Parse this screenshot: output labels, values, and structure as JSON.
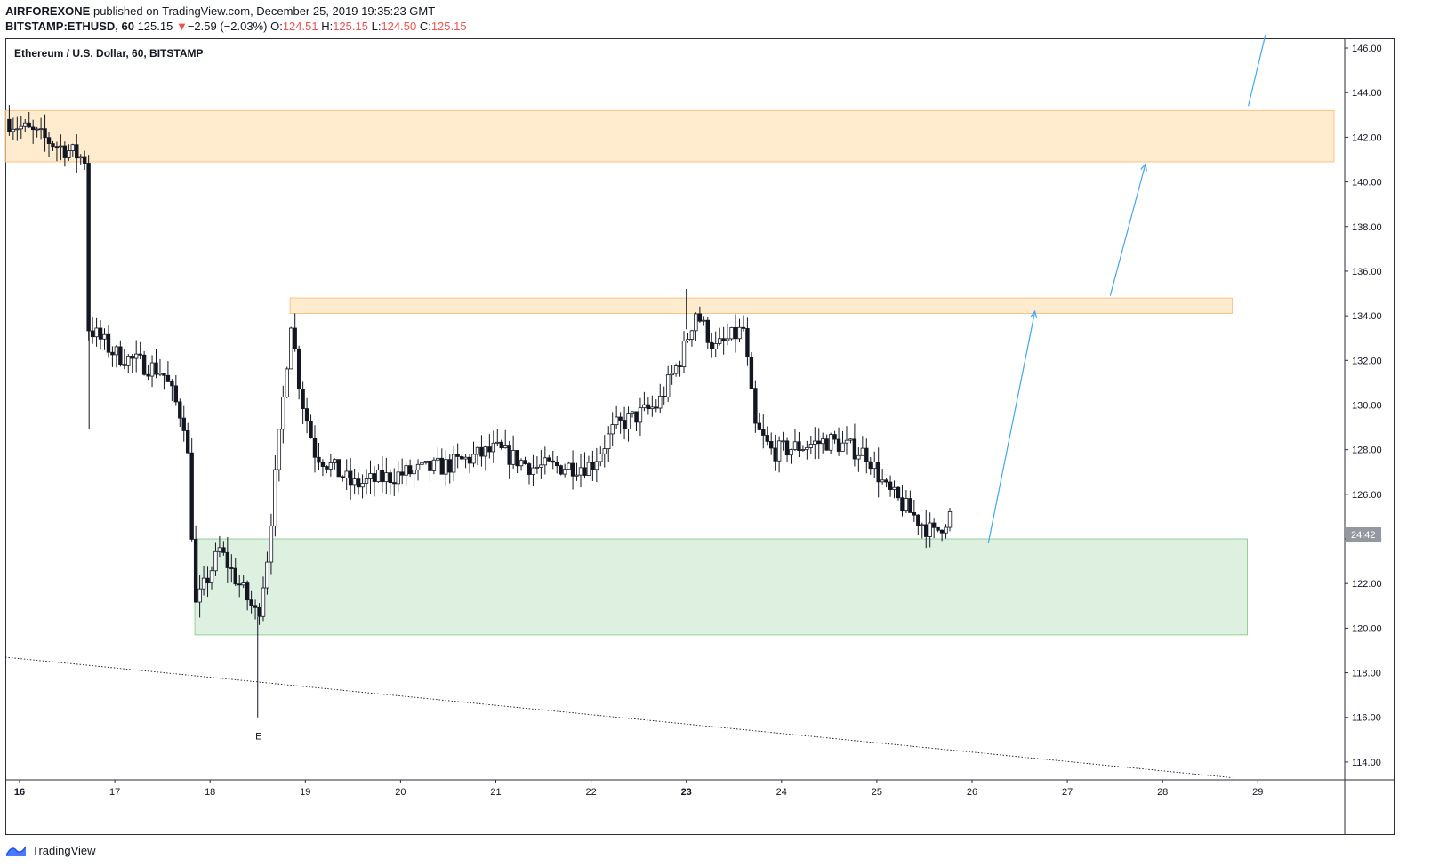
{
  "header": {
    "author": "AIRFOREXONE",
    "published_text": "published on TradingView.com, December 25, 2019 19:35:23 GMT",
    "symbol_line": {
      "symbol": "BITSTAMP:ETHUSD, 60",
      "price": "125.15",
      "change_arrow": "▼",
      "change": "−2.59 (−2.03%)",
      "open_label": "O:",
      "open": "124.51",
      "high_label": "H:",
      "high": "125.15",
      "low_label": "L:",
      "low": "124.50",
      "close_label": "C:",
      "close": "125.15"
    }
  },
  "chart_title": "Ethereum / U.S. Dollar, 60, BITSTAMP",
  "footer": {
    "brand": "TradingView"
  },
  "colors": {
    "supply_zone": "#ffe0b2",
    "demand_zone": "#c8e6c9",
    "projection": "#42a5f5",
    "candle": "#131722",
    "negative": "#ef5350",
    "countdown_badge": "#9598a1"
  },
  "chart_data": {
    "type": "candlestick",
    "title": "Ethereum / U.S. Dollar, 60, BITSTAMP",
    "ylim": [
      113.2,
      146.4
    ],
    "y_ticks": [
      "146.00",
      "144.00",
      "142.00",
      "140.00",
      "138.00",
      "136.00",
      "134.00",
      "132.00",
      "130.00",
      "128.00",
      "126.00",
      "124.00",
      "122.00",
      "120.00",
      "118.00",
      "116.00",
      "114.00"
    ],
    "x_tick_labels": [
      "16",
      "17",
      "18",
      "19",
      "20",
      "21",
      "22",
      "23",
      "24",
      "25",
      "26",
      "27",
      "28",
      "29"
    ],
    "bold_x_ticks": [
      "16",
      "23"
    ],
    "price_badge": "24:42",
    "price_badge_level": 124.2,
    "zones": [
      {
        "name": "upper-supply-zone",
        "type": "supply",
        "from_day": 15.85,
        "to_day": 29.8,
        "low": 140.9,
        "high": 143.2
      },
      {
        "name": "mid-supply-zone",
        "type": "supply",
        "from_day": 18.84,
        "to_day": 28.73,
        "low": 134.1,
        "high": 134.8
      },
      {
        "name": "demand-zone",
        "type": "demand",
        "from_day": 17.84,
        "to_day": 28.89,
        "low": 119.7,
        "high": 124.0
      }
    ],
    "projection_path": [
      [
        26.17,
        123.8
      ],
      [
        26.66,
        134.2
      ],
      [
        27.45,
        134.9
      ],
      [
        27.82,
        140.8
      ],
      [
        28.9,
        143.4
      ],
      [
        29.08,
        146.6
      ]
    ],
    "trendline": {
      "start": [
        15.85,
        118.7
      ],
      "end": [
        28.73,
        113.3
      ]
    },
    "label_e": {
      "text": "E",
      "day": 18.51,
      "price": 115.5
    },
    "candles_anchor_days": [
      15.85,
      16.7,
      16.72,
      17.0,
      17.5,
      17.75,
      17.85,
      18.1,
      18.5,
      18.6,
      18.85,
      18.95,
      19.1,
      19.5,
      20.0,
      20.5,
      21.0,
      21.4,
      22.0,
      22.25,
      22.7,
      22.95,
      23.1,
      23.3,
      23.6,
      23.72,
      23.9,
      24.5,
      24.9,
      25.1,
      25.4,
      25.6,
      25.78
    ],
    "candles_anchor_prices": [
      142.8,
      141.0,
      133.5,
      132.3,
      131.5,
      129.0,
      121.0,
      123.5,
      120.5,
      123.2,
      133.8,
      130.5,
      127.9,
      126.4,
      126.9,
      127.3,
      128.0,
      127.2,
      127.3,
      129.0,
      130.0,
      132.2,
      134.2,
      132.5,
      133.4,
      129.0,
      127.9,
      128.4,
      127.8,
      126.2,
      125.0,
      124.2,
      125.15
    ]
  }
}
